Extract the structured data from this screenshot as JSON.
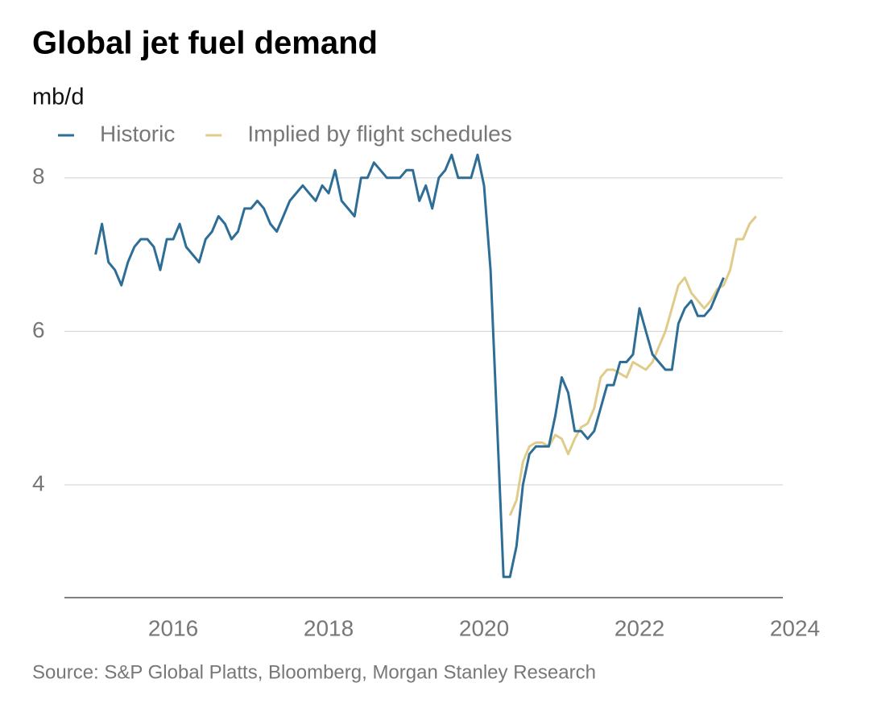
{
  "chart_data": {
    "type": "line",
    "title": "Global jet fuel demand",
    "subtitle": "mb/d",
    "source": "Source: S&P Global Platts, Bloomberg, Morgan Stanley Research",
    "legend": "top-left",
    "grid": true,
    "xlim": [
      2014.6,
      2024
    ],
    "xticks": [
      2016,
      2018,
      2020,
      2022,
      2024
    ],
    "ylim": [
      2.53,
      8.25
    ],
    "yticks": [
      4,
      6,
      8
    ],
    "x": [
      2015,
      2015.083,
      2015.167,
      2015.25,
      2015.333,
      2015.417,
      2015.5,
      2015.583,
      2015.667,
      2015.75,
      2015.833,
      2015.917,
      2016,
      2016.083,
      2016.167,
      2016.25,
      2016.333,
      2016.417,
      2016.5,
      2016.583,
      2016.667,
      2016.75,
      2016.833,
      2016.917,
      2017,
      2017.083,
      2017.167,
      2017.25,
      2017.333,
      2017.417,
      2017.5,
      2017.583,
      2017.667,
      2017.75,
      2017.833,
      2017.917,
      2018,
      2018.083,
      2018.167,
      2018.25,
      2018.333,
      2018.417,
      2018.5,
      2018.583,
      2018.667,
      2018.75,
      2018.833,
      2018.917,
      2019,
      2019.083,
      2019.167,
      2019.25,
      2019.333,
      2019.417,
      2019.5,
      2019.583,
      2019.667,
      2019.75,
      2019.833,
      2019.917,
      2020,
      2020.083,
      2020.167,
      2020.25,
      2020.333,
      2020.417,
      2020.5,
      2020.583,
      2020.667,
      2020.75,
      2020.833,
      2020.917,
      2021,
      2021.083,
      2021.167,
      2021.25,
      2021.333,
      2021.417,
      2021.5,
      2021.583,
      2021.667,
      2021.75,
      2021.833,
      2021.917,
      2022,
      2022.083,
      2022.167,
      2022.25,
      2022.333,
      2022.417,
      2022.5,
      2022.583,
      2022.667,
      2022.75,
      2022.833,
      2022.917,
      2023,
      2023.083,
      2023.167,
      2023.25,
      2023.333,
      2023.417,
      2023.5
    ],
    "series": [
      {
        "name": "Historic",
        "color": "#2e6e96",
        "values": [
          7.0,
          7.4,
          6.9,
          6.8,
          6.6,
          6.9,
          7.1,
          7.2,
          7.2,
          7.1,
          6.8,
          7.2,
          7.2,
          7.4,
          7.1,
          7.0,
          6.9,
          7.2,
          7.3,
          7.5,
          7.4,
          7.2,
          7.3,
          7.6,
          7.6,
          7.7,
          7.6,
          7.4,
          7.3,
          7.5,
          7.7,
          7.8,
          7.9,
          7.8,
          7.7,
          7.9,
          7.8,
          8.1,
          7.7,
          7.6,
          7.5,
          8.0,
          8.0,
          8.2,
          8.1,
          8.0,
          8.0,
          8.0,
          8.1,
          8.1,
          7.7,
          7.9,
          7.6,
          8.0,
          8.1,
          8.3,
          8.0,
          8.0,
          8.0,
          8.3,
          7.9,
          6.8,
          4.8,
          2.8,
          2.8,
          3.2,
          4.0,
          4.4,
          4.5,
          4.5,
          4.5,
          4.9,
          5.4,
          5.2,
          4.7,
          4.7,
          4.6,
          4.7,
          5.0,
          5.3,
          5.3,
          5.6,
          5.6,
          5.7,
          6.3,
          6.0,
          5.7,
          5.6,
          5.5,
          5.5,
          6.1,
          6.3,
          6.4,
          6.2,
          6.2,
          6.3,
          6.5,
          6.7,
          null,
          null,
          null,
          null,
          null
        ]
      },
      {
        "name": "Implied by flight schedules",
        "color": "#e0cc8a",
        "values": [
          null,
          null,
          null,
          null,
          null,
          null,
          null,
          null,
          null,
          null,
          null,
          null,
          null,
          null,
          null,
          null,
          null,
          null,
          null,
          null,
          null,
          null,
          null,
          null,
          null,
          null,
          null,
          null,
          null,
          null,
          null,
          null,
          null,
          null,
          null,
          null,
          null,
          null,
          null,
          null,
          null,
          null,
          null,
          null,
          null,
          null,
          null,
          null,
          null,
          null,
          null,
          null,
          null,
          null,
          null,
          null,
          null,
          null,
          null,
          null,
          null,
          null,
          null,
          null,
          3.6,
          3.8,
          4.3,
          4.5,
          4.55,
          4.55,
          4.5,
          4.65,
          4.6,
          4.4,
          4.6,
          4.75,
          4.8,
          5.0,
          5.4,
          5.5,
          5.5,
          5.45,
          5.4,
          5.6,
          5.55,
          5.5,
          5.6,
          5.8,
          6.0,
          6.3,
          6.6,
          6.7,
          6.5,
          6.4,
          6.3,
          6.4,
          6.55,
          6.6,
          6.8,
          7.2,
          7.2,
          7.4,
          7.5
        ]
      }
    ]
  }
}
